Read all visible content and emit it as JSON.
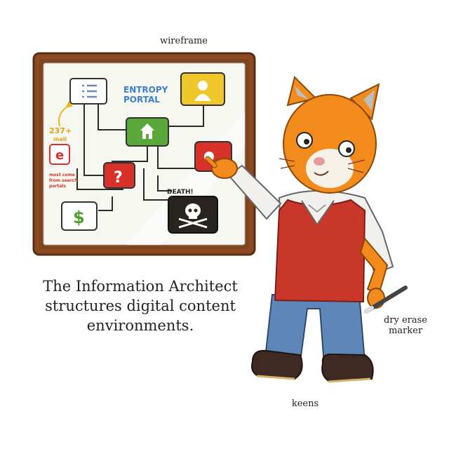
{
  "labels": {
    "wireframe": "wireframe",
    "marker": [
      "dry erase",
      "marker"
    ],
    "keens": "keens"
  },
  "caption": [
    "The Information Architect",
    "structures digital content",
    "environments."
  ],
  "whiteboard": {
    "entropy_portal": [
      "ENTROPY",
      "PORTAL"
    ],
    "death": "DEATH!",
    "annotation_number": "237+",
    "annotation_small": "mall",
    "e_note": [
      "most come",
      "from search",
      "portals"
    ],
    "e_letter": "e",
    "question": "?",
    "dollar": "$"
  },
  "colors": {
    "frame": "#8a4a22",
    "board": "#f7f7f2",
    "green": "#5aa83a",
    "red": "#d8312a",
    "yellow": "#efc72a",
    "black": "#2a2420",
    "cat": "#f28a1c",
    "vest": "#c8372a",
    "jeans": "#5d87b8",
    "boots": "#3e2a22"
  }
}
